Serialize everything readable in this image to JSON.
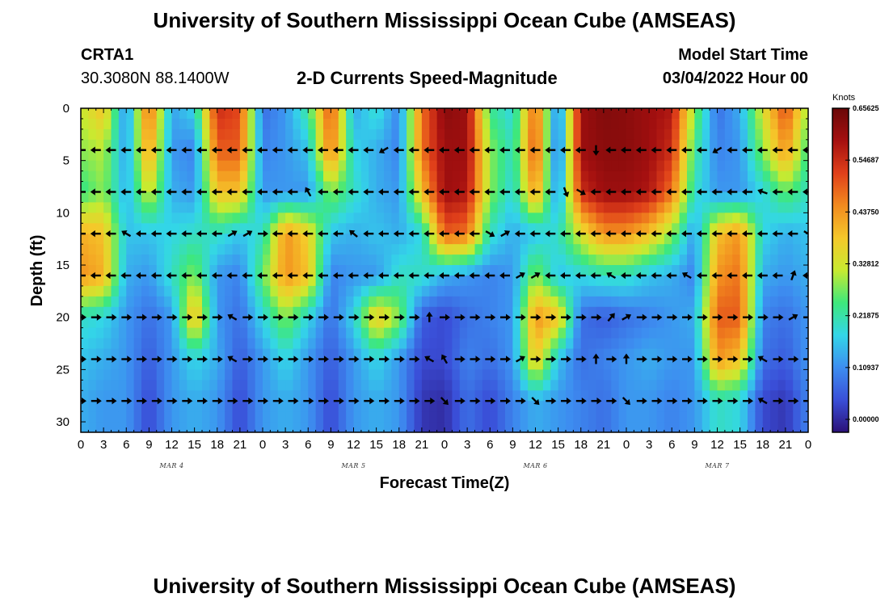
{
  "header": {
    "title": "University of Southern Mississippi Ocean Cube (AMSEAS)",
    "station_name": "CRTA1",
    "station_coords": "30.3080N  88.1400W",
    "product": "2-D Currents Speed-Magnitude",
    "model_start_label": "Model Start Time",
    "model_start_value": "03/04/2022 Hour 00"
  },
  "footer": {
    "title_repeat": "University of Southern Mississippi Ocean Cube (AMSEAS)"
  },
  "chart_data": {
    "type": "heatmap",
    "title": "2-D Currents Speed-Magnitude",
    "xlabel": "Forecast Time(Z)",
    "ylabel": "Depth (ft)",
    "xlim": [
      0,
      96
    ],
    "ylim": [
      31,
      0
    ],
    "x_tick_labels": [
      "0",
      "3",
      "6",
      "9",
      "12",
      "15",
      "18",
      "21",
      "0",
      "3",
      "6",
      "9",
      "12",
      "15",
      "18",
      "21",
      "0",
      "3",
      "6",
      "9",
      "12",
      "15",
      "18",
      "21",
      "0",
      "3",
      "6",
      "9",
      "12",
      "15",
      "18",
      "21",
      "0"
    ],
    "y_ticks": [
      0,
      5,
      10,
      15,
      20,
      25,
      30
    ],
    "date_labels": [
      {
        "label": "MAR 4",
        "hour": 12
      },
      {
        "label": "MAR 5",
        "hour": 36
      },
      {
        "label": "MAR 6",
        "hour": 60
      },
      {
        "label": "MAR 7",
        "hour": 84
      }
    ],
    "colorbar": {
      "title": "Knots",
      "min": 0.0,
      "max": 0.65625,
      "tick_labels": [
        "0.00000",
        "0.10937",
        "0.21875",
        "0.32812",
        "0.43750",
        "0.54687",
        "0.65625"
      ],
      "colors": [
        "#2b1178",
        "#3a4fd8",
        "#3d8ef0",
        "#33d6e8",
        "#3ee87c",
        "#c8ea30",
        "#f5c82a",
        "#f28a1e",
        "#e0401a",
        "#a51010",
        "#6a0808"
      ]
    },
    "depths_ft": [
      0,
      4,
      8,
      12,
      16,
      20,
      24,
      28
    ],
    "hours": [
      0,
      3,
      6,
      9,
      12,
      15,
      18,
      21,
      24,
      27,
      30,
      33,
      36,
      39,
      42,
      45,
      48,
      51,
      54,
      57,
      60,
      63,
      66,
      69,
      72,
      75,
      78,
      81,
      84,
      87,
      90,
      93,
      96
    ],
    "speed_knots": [
      [
        0.33,
        0.4,
        0.12,
        0.5,
        0.15,
        0.2,
        0.55,
        0.52,
        0.1,
        0.14,
        0.25,
        0.52,
        0.15,
        0.22,
        0.12,
        0.48,
        0.62,
        0.6,
        0.25,
        0.2,
        0.5,
        0.1,
        0.6,
        0.63,
        0.62,
        0.6,
        0.58,
        0.3,
        0.1,
        0.16,
        0.35,
        0.52,
        0.3
      ],
      [
        0.3,
        0.32,
        0.14,
        0.45,
        0.14,
        0.12,
        0.5,
        0.5,
        0.12,
        0.14,
        0.18,
        0.48,
        0.2,
        0.16,
        0.12,
        0.48,
        0.6,
        0.6,
        0.3,
        0.22,
        0.52,
        0.08,
        0.6,
        0.62,
        0.62,
        0.6,
        0.55,
        0.25,
        0.12,
        0.14,
        0.3,
        0.45,
        0.25
      ],
      [
        0.25,
        0.3,
        0.16,
        0.35,
        0.16,
        0.14,
        0.4,
        0.4,
        0.14,
        0.14,
        0.14,
        0.3,
        0.22,
        0.16,
        0.14,
        0.4,
        0.6,
        0.58,
        0.3,
        0.2,
        0.45,
        0.12,
        0.55,
        0.6,
        0.6,
        0.58,
        0.48,
        0.22,
        0.14,
        0.14,
        0.2,
        0.28,
        0.22
      ],
      [
        0.42,
        0.4,
        0.18,
        0.18,
        0.2,
        0.22,
        0.22,
        0.18,
        0.22,
        0.45,
        0.38,
        0.18,
        0.16,
        0.18,
        0.16,
        0.2,
        0.5,
        0.48,
        0.22,
        0.16,
        0.18,
        0.22,
        0.35,
        0.45,
        0.45,
        0.4,
        0.3,
        0.14,
        0.4,
        0.45,
        0.2,
        0.16,
        0.18
      ],
      [
        0.45,
        0.42,
        0.16,
        0.14,
        0.22,
        0.3,
        0.14,
        0.12,
        0.28,
        0.45,
        0.4,
        0.12,
        0.14,
        0.14,
        0.22,
        0.22,
        0.16,
        0.14,
        0.12,
        0.14,
        0.3,
        0.18,
        0.2,
        0.22,
        0.22,
        0.18,
        0.16,
        0.12,
        0.45,
        0.48,
        0.16,
        0.14,
        0.16
      ],
      [
        0.22,
        0.2,
        0.14,
        0.1,
        0.14,
        0.42,
        0.14,
        0.1,
        0.2,
        0.3,
        0.2,
        0.1,
        0.2,
        0.4,
        0.3,
        0.08,
        0.06,
        0.1,
        0.12,
        0.14,
        0.45,
        0.4,
        0.1,
        0.08,
        0.1,
        0.12,
        0.14,
        0.16,
        0.5,
        0.5,
        0.12,
        0.1,
        0.14
      ],
      [
        0.18,
        0.16,
        0.14,
        0.08,
        0.14,
        0.2,
        0.16,
        0.08,
        0.14,
        0.2,
        0.14,
        0.08,
        0.14,
        0.2,
        0.14,
        0.06,
        0.06,
        0.12,
        0.1,
        0.14,
        0.4,
        0.18,
        0.1,
        0.12,
        0.14,
        0.16,
        0.14,
        0.14,
        0.45,
        0.4,
        0.1,
        0.08,
        0.14
      ],
      [
        0.16,
        0.14,
        0.14,
        0.06,
        0.14,
        0.16,
        0.14,
        0.06,
        0.14,
        0.16,
        0.14,
        0.06,
        0.14,
        0.16,
        0.14,
        0.04,
        0.03,
        0.1,
        0.06,
        0.12,
        0.16,
        0.14,
        0.12,
        0.1,
        0.14,
        0.14,
        0.12,
        0.14,
        0.22,
        0.2,
        0.06,
        0.04,
        0.12
      ]
    ],
    "arrows": {
      "depths_ft": [
        4,
        8,
        12,
        16,
        20,
        24,
        28
      ],
      "hours": [
        0,
        2,
        4,
        6,
        8,
        10,
        12,
        14,
        16,
        18,
        20,
        22,
        24,
        26,
        28,
        30,
        32,
        34,
        36,
        38,
        40,
        42,
        44,
        46,
        48,
        50,
        52,
        54,
        56,
        58,
        60,
        62,
        64,
        66,
        68,
        70,
        72,
        74,
        76,
        78,
        80,
        82,
        84,
        86,
        88,
        90,
        92,
        94,
        96
      ],
      "direction_deg": [
        [
          270,
          270,
          270,
          270,
          270,
          270,
          270,
          270,
          270,
          270,
          270,
          270,
          270,
          270,
          270,
          270,
          270,
          270,
          270,
          270,
          240,
          270,
          270,
          270,
          270,
          270,
          270,
          270,
          270,
          270,
          270,
          270,
          270,
          270,
          180,
          270,
          270,
          270,
          270,
          270,
          270,
          270,
          240,
          270,
          270,
          270,
          270,
          270,
          270
        ],
        [
          270,
          270,
          270,
          270,
          270,
          270,
          270,
          270,
          270,
          270,
          270,
          270,
          270,
          270,
          270,
          330,
          270,
          270,
          270,
          270,
          270,
          270,
          270,
          270,
          270,
          270,
          270,
          270,
          270,
          270,
          270,
          270,
          160,
          120,
          270,
          270,
          270,
          270,
          270,
          270,
          270,
          270,
          270,
          270,
          270,
          290,
          270,
          270,
          270
        ],
        [
          270,
          270,
          270,
          300,
          270,
          270,
          270,
          270,
          270,
          270,
          60,
          60,
          90,
          270,
          270,
          270,
          270,
          270,
          310,
          270,
          270,
          270,
          270,
          270,
          270,
          270,
          270,
          120,
          60,
          270,
          270,
          270,
          270,
          270,
          270,
          270,
          270,
          270,
          270,
          270,
          270,
          270,
          270,
          270,
          270,
          270,
          270,
          270,
          120
        ],
        [
          270,
          270,
          270,
          270,
          270,
          270,
          270,
          270,
          270,
          270,
          270,
          270,
          270,
          270,
          270,
          270,
          270,
          270,
          270,
          270,
          270,
          270,
          270,
          270,
          270,
          270,
          270,
          270,
          270,
          60,
          60,
          270,
          270,
          270,
          270,
          300,
          270,
          270,
          270,
          270,
          300,
          270,
          270,
          270,
          270,
          270,
          270,
          20,
          270
        ],
        [
          90,
          90,
          90,
          90,
          90,
          90,
          90,
          90,
          90,
          90,
          300,
          90,
          90,
          90,
          90,
          90,
          90,
          90,
          90,
          90,
          90,
          90,
          90,
          0,
          90,
          90,
          90,
          90,
          90,
          90,
          90,
          90,
          90,
          90,
          90,
          40,
          60,
          90,
          90,
          90,
          90,
          90,
          90,
          90,
          90,
          90,
          90,
          60,
          90
        ],
        [
          90,
          90,
          90,
          90,
          90,
          90,
          90,
          90,
          90,
          90,
          300,
          90,
          90,
          90,
          90,
          90,
          90,
          90,
          90,
          90,
          90,
          90,
          90,
          300,
          330,
          90,
          90,
          90,
          90,
          60,
          90,
          90,
          90,
          90,
          0,
          90,
          0,
          90,
          90,
          90,
          90,
          90,
          90,
          90,
          90,
          300,
          90,
          90,
          90
        ],
        [
          90,
          90,
          90,
          90,
          90,
          90,
          90,
          90,
          90,
          90,
          90,
          90,
          90,
          90,
          90,
          90,
          90,
          90,
          90,
          90,
          90,
          90,
          90,
          90,
          135,
          90,
          90,
          90,
          90,
          90,
          135,
          90,
          90,
          90,
          90,
          90,
          135,
          90,
          90,
          90,
          90,
          90,
          90,
          90,
          90,
          300,
          90,
          90,
          90
        ]
      ]
    }
  }
}
